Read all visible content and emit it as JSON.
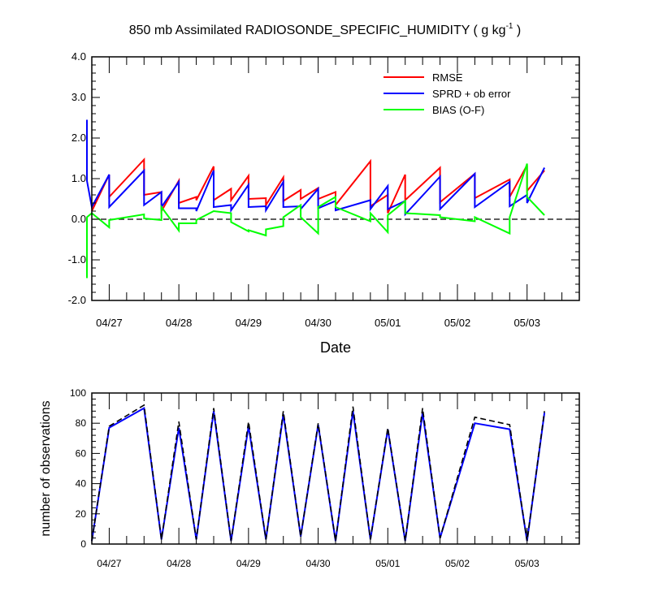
{
  "title": "850 mb Assimilated RADIOSONDE_SPECIFIC_HUMIDITY ( g kg",
  "title_sup": "-1",
  "title_tail": " )",
  "chart_data": [
    {
      "type": "line",
      "xlabel": "Date",
      "ylabel": "",
      "ylim": [
        -2.0,
        4.0
      ],
      "yticks": [
        "-2.0",
        "-1.0",
        "0.0",
        "1.0",
        "2.0",
        "3.0",
        "4.0"
      ],
      "xlim": [
        0,
        7.0
      ],
      "xticks": [
        0.25,
        1.25,
        2.25,
        3.25,
        4.25,
        5.25,
        6.25
      ],
      "xticklabels": [
        "04/27",
        "04/28",
        "04/29",
        "04/30",
        "05/01",
        "05/02",
        "05/03"
      ],
      "zero_line": "dashed",
      "legend_position": "top-right",
      "colors": {
        "RMSE": "#ff0000",
        "SPRD + ob error": "#0000ff",
        "BIAS (O-F)": "#00ff00"
      },
      "series": [
        {
          "name": "RMSE",
          "x": [
            0.0,
            0.25,
            0.25,
            0.75,
            0.75,
            1.0,
            1.0,
            1.25,
            1.25,
            1.5,
            1.5,
            1.75,
            1.75,
            2.0,
            2.0,
            2.25,
            2.25,
            2.5,
            2.5,
            2.75,
            2.75,
            3.0,
            3.0,
            3.25,
            3.25,
            3.5,
            3.5,
            4.0,
            4.0,
            4.25,
            4.25,
            4.5,
            4.5,
            5.0,
            5.0,
            5.5,
            5.5,
            6.0,
            6.0,
            6.25,
            6.25,
            6.5
          ],
          "y": [
            0.2,
            1.1,
            0.55,
            1.47,
            0.6,
            0.67,
            0.2,
            0.95,
            0.4,
            0.55,
            0.47,
            1.3,
            0.47,
            0.75,
            0.47,
            1.07,
            0.5,
            0.52,
            0.35,
            1.03,
            0.45,
            0.72,
            0.5,
            0.77,
            0.5,
            0.67,
            0.35,
            1.43,
            0.32,
            0.6,
            0.15,
            1.1,
            0.47,
            1.27,
            0.42,
            1.12,
            0.52,
            0.98,
            0.55,
            1.33,
            0.7,
            1.2
          ]
        },
        {
          "name": "SPRD + ob error",
          "x": [
            -0.07,
            -0.07,
            0.0,
            0.25,
            0.25,
            0.75,
            0.75,
            1.0,
            1.0,
            1.25,
            1.25,
            1.5,
            1.5,
            1.75,
            1.75,
            2.0,
            2.0,
            2.25,
            2.25,
            2.5,
            2.5,
            2.75,
            2.75,
            3.0,
            3.0,
            3.25,
            3.25,
            3.5,
            3.5,
            4.0,
            4.0,
            4.25,
            4.25,
            4.5,
            4.5,
            5.0,
            5.0,
            5.5,
            5.5,
            6.0,
            6.0,
            6.25,
            6.25,
            6.5
          ],
          "y": [
            2.45,
            0.95,
            0.3,
            1.1,
            0.3,
            1.2,
            0.35,
            0.67,
            0.3,
            0.92,
            0.27,
            0.27,
            0.2,
            1.2,
            0.3,
            0.35,
            0.22,
            0.85,
            0.3,
            0.32,
            0.22,
            0.92,
            0.3,
            0.32,
            0.25,
            0.75,
            0.27,
            0.45,
            0.22,
            0.47,
            0.25,
            0.82,
            0.25,
            0.45,
            0.12,
            1.05,
            0.25,
            1.12,
            0.3,
            0.92,
            0.32,
            0.6,
            0.4,
            1.27
          ]
        },
        {
          "name": "BIAS (O-F)",
          "x": [
            -0.07,
            -0.07,
            0.0,
            0.25,
            0.25,
            0.75,
            0.75,
            1.0,
            1.0,
            1.25,
            1.25,
            1.5,
            1.5,
            1.75,
            1.75,
            2.0,
            2.0,
            2.25,
            2.25,
            2.5,
            2.5,
            2.75,
            2.75,
            3.0,
            3.0,
            3.25,
            3.25,
            3.5,
            3.5,
            4.0,
            4.0,
            4.25,
            4.25,
            4.5,
            4.5,
            5.0,
            5.0,
            5.5,
            5.5,
            6.0,
            6.0,
            6.25,
            6.25,
            6.5
          ],
          "y": [
            -1.45,
            0.05,
            0.15,
            -0.2,
            -0.02,
            0.12,
            0.02,
            -0.02,
            0.3,
            -0.28,
            -0.1,
            -0.1,
            -0.02,
            0.2,
            0.2,
            0.15,
            -0.07,
            -0.3,
            -0.27,
            -0.4,
            -0.25,
            -0.17,
            0.05,
            0.35,
            0.05,
            -0.35,
            0.3,
            0.55,
            0.3,
            -0.05,
            0.15,
            -0.32,
            0.1,
            0.45,
            0.15,
            0.1,
            0.05,
            -0.05,
            0.05,
            -0.35,
            0.05,
            1.37,
            0.55,
            0.1
          ]
        }
      ]
    },
    {
      "type": "line",
      "xlabel": "",
      "ylabel": "number of observations",
      "ylim": [
        0,
        100
      ],
      "yticks": [
        "0",
        "20",
        "40",
        "60",
        "80",
        "100"
      ],
      "xlim": [
        0,
        7.0
      ],
      "xticks": [
        0.25,
        1.25,
        2.25,
        3.25,
        4.25,
        5.25,
        6.25
      ],
      "xticklabels": [
        "04/27",
        "04/28",
        "04/29",
        "04/30",
        "05/01",
        "05/02",
        "05/03"
      ],
      "colors": {
        "solid": "#0000ff",
        "dashed": "#000000"
      },
      "series": [
        {
          "x": [
            0.0,
            0.25,
            0.75,
            1.0,
            1.25,
            1.5,
            1.75,
            2.0,
            2.25,
            2.5,
            2.75,
            3.0,
            3.25,
            3.5,
            3.75,
            4.0,
            4.25,
            4.5,
            4.75,
            5.0,
            5.5,
            6.0,
            6.25,
            6.5
          ],
          "y": [
            2,
            77,
            90,
            3,
            77,
            3,
            88,
            2,
            78,
            3,
            86,
            5,
            79,
            2,
            88,
            3,
            76,
            2,
            87,
            4,
            80,
            76,
            2,
            87
          ],
          "style": "solid"
        },
        {
          "x": [
            0.0,
            0.25,
            0.75,
            1.0,
            1.25,
            1.5,
            1.75,
            2.0,
            2.25,
            2.5,
            2.75,
            3.0,
            3.25,
            3.5,
            3.75,
            4.0,
            4.25,
            4.5,
            4.75,
            5.0,
            5.5,
            6.0,
            6.25,
            6.5
          ],
          "y": [
            2,
            78,
            92,
            3,
            81,
            3,
            90,
            2,
            81,
            3,
            88,
            5,
            80,
            2,
            91,
            3,
            77,
            2,
            90,
            4,
            84,
            79,
            2,
            88
          ],
          "style": "dashed"
        }
      ]
    }
  ]
}
